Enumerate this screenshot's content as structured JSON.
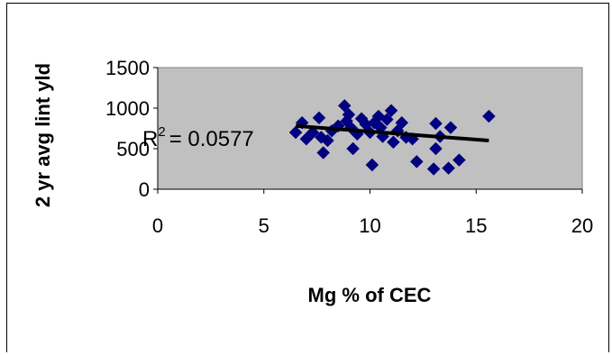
{
  "chart_data": {
    "type": "scatter",
    "title": "",
    "xlabel": "Mg % of CEC",
    "ylabel": "2 yr avg lint yld",
    "xlim": [
      0,
      20
    ],
    "ylim": [
      0,
      1500
    ],
    "xticks": [
      "0",
      "5",
      "10",
      "15",
      "20"
    ],
    "yticks": [
      "0",
      "500",
      "1000",
      "1500"
    ],
    "grid": false,
    "legend": "none",
    "plot_background": "#c0c0c0",
    "marker_color": "#000080",
    "marker": "diamond",
    "points": [
      [
        6.5,
        700
      ],
      [
        6.8,
        820
      ],
      [
        7.0,
        620
      ],
      [
        7.3,
        700
      ],
      [
        7.6,
        880
      ],
      [
        7.7,
        640
      ],
      [
        7.8,
        450
      ],
      [
        8.0,
        600
      ],
      [
        8.2,
        720
      ],
      [
        8.5,
        780
      ],
      [
        8.8,
        1030
      ],
      [
        8.9,
        840
      ],
      [
        9.0,
        920
      ],
      [
        9.1,
        760
      ],
      [
        9.2,
        500
      ],
      [
        9.4,
        680
      ],
      [
        9.6,
        870
      ],
      [
        9.8,
        800
      ],
      [
        10.0,
        700
      ],
      [
        10.1,
        300
      ],
      [
        10.2,
        820
      ],
      [
        10.4,
        900
      ],
      [
        10.5,
        760
      ],
      [
        10.6,
        650
      ],
      [
        10.8,
        860
      ],
      [
        11.0,
        970
      ],
      [
        11.1,
        580
      ],
      [
        11.3,
        720
      ],
      [
        11.5,
        820
      ],
      [
        11.7,
        640
      ],
      [
        12.0,
        620
      ],
      [
        12.2,
        340
      ],
      [
        13.0,
        250
      ],
      [
        13.1,
        810
      ],
      [
        13.1,
        500
      ],
      [
        13.3,
        650
      ],
      [
        13.7,
        260
      ],
      [
        13.8,
        760
      ],
      [
        14.2,
        360
      ],
      [
        15.6,
        900
      ]
    ],
    "trendline": {
      "x": [
        6.5,
        15.6
      ],
      "y": [
        780,
        600
      ]
    },
    "annotation": {
      "text": "= 0.0577",
      "r": "R",
      "sup": "2"
    }
  }
}
